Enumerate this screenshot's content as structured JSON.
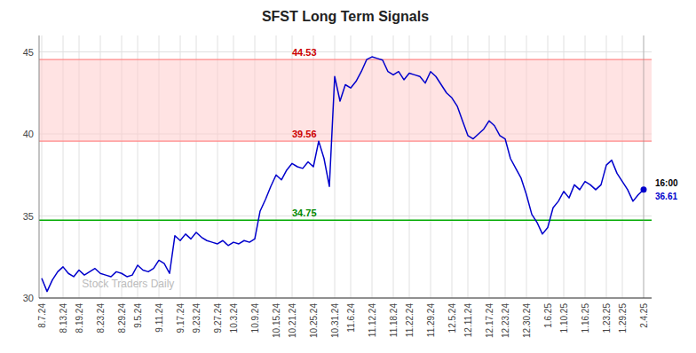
{
  "chart_data": {
    "type": "line",
    "title": "SFST Long Term Signals",
    "categories": [
      "8.7.24",
      null,
      null,
      null,
      "8.13.24",
      null,
      null,
      "8.19.24",
      null,
      null,
      null,
      "8.23.24",
      null,
      null,
      null,
      "8.29.24",
      null,
      null,
      "9.5.24",
      null,
      null,
      null,
      "9.11.24",
      null,
      null,
      null,
      "9.17.24",
      null,
      null,
      "9.23.24",
      null,
      null,
      null,
      "9.27.24",
      null,
      null,
      "10.3.24",
      null,
      null,
      null,
      "10.9.24",
      null,
      null,
      null,
      "10.15.24",
      null,
      null,
      "10.21.24",
      null,
      null,
      null,
      "10.25.24",
      null,
      null,
      null,
      "10.31.24",
      null,
      null,
      "11.6.24",
      null,
      null,
      null,
      "11.12.24",
      null,
      null,
      null,
      "11.18.24",
      null,
      null,
      "11.22.24",
      null,
      null,
      null,
      "11.29.24",
      null,
      null,
      null,
      "12.5.24",
      null,
      null,
      "12.11.24",
      null,
      null,
      null,
      "12.17.24",
      null,
      null,
      "12.23.24",
      null,
      null,
      null,
      "12.30.24",
      null,
      null,
      null,
      "1.6.25",
      null,
      null,
      "1.10.25",
      null,
      null,
      null,
      "1.16.25",
      null,
      null,
      null,
      "1.23.25",
      null,
      null,
      "1.29.25",
      null,
      null,
      null,
      "2.4.25"
    ],
    "values": [
      31.2,
      30.4,
      31.1,
      31.6,
      31.9,
      31.5,
      31.3,
      31.7,
      31.4,
      31.6,
      31.8,
      31.5,
      31.4,
      31.3,
      31.6,
      31.5,
      31.3,
      31.4,
      32.0,
      31.7,
      31.6,
      31.8,
      32.3,
      32.1,
      31.5,
      33.8,
      33.5,
      33.9,
      33.6,
      34.0,
      33.7,
      33.5,
      33.4,
      33.3,
      33.5,
      33.2,
      33.4,
      33.3,
      33.5,
      33.4,
      33.6,
      35.3,
      36.0,
      36.8,
      37.5,
      37.2,
      37.8,
      38.2,
      38.0,
      37.9,
      38.3,
      38.0,
      39.56,
      38.5,
      36.8,
      43.5,
      42.0,
      43.0,
      42.8,
      43.2,
      43.8,
      44.53,
      44.7,
      44.6,
      44.5,
      43.8,
      43.6,
      43.8,
      43.3,
      43.7,
      43.6,
      43.5,
      43.1,
      43.8,
      43.5,
      43.0,
      42.5,
      42.2,
      41.7,
      40.8,
      39.9,
      39.7,
      40.0,
      40.3,
      40.8,
      40.5,
      39.9,
      39.7,
      38.5,
      37.9,
      37.3,
      36.3,
      35.1,
      34.6,
      33.9,
      34.3,
      35.5,
      35.9,
      36.5,
      36.1,
      36.9,
      36.6,
      37.1,
      36.9,
      36.6,
      36.9,
      38.1,
      38.4,
      37.6,
      37.1,
      36.6,
      35.9,
      36.3,
      36.61
    ],
    "color": "#0000cc",
    "ylim": [
      30,
      46
    ],
    "yticks": [
      30,
      35,
      40,
      45
    ],
    "grid": true,
    "band": {
      "y1": 39.56,
      "y2": 44.53,
      "color": "#ffcccc",
      "edge_color": "#ff8888",
      "label_color": "#cc0000"
    },
    "reference_line": {
      "y": 34.75,
      "color": "#00aa00",
      "label_color": "#008800"
    },
    "current": {
      "value": 36.61,
      "time": "16:00"
    },
    "watermark": "Stock Traders Daily"
  }
}
